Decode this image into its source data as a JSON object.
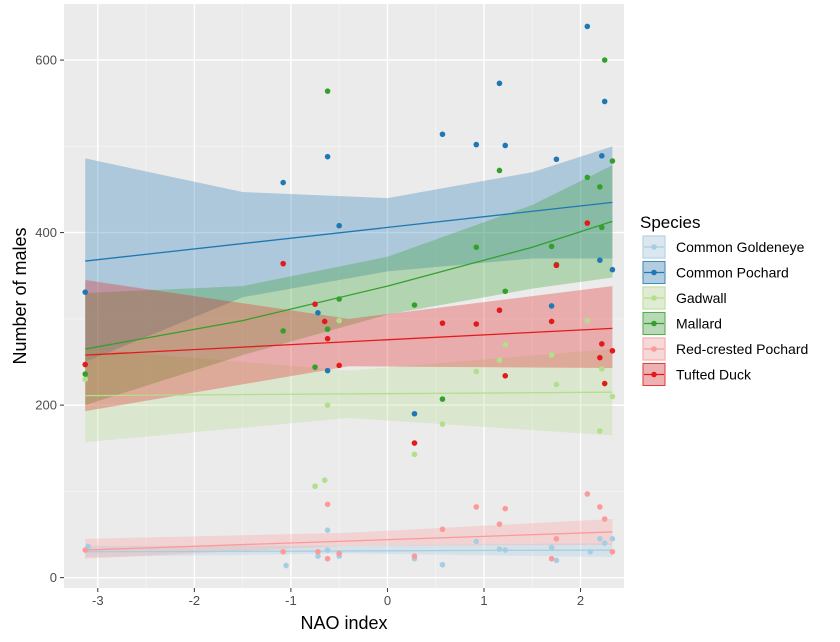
{
  "chart_data": {
    "type": "scatter",
    "xlabel": "NAO index",
    "ylabel": "Number of males",
    "xlim": [
      -3.35,
      2.45
    ],
    "ylim": [
      -12,
      665
    ],
    "x_ticks": [
      -3,
      -2,
      -1,
      0,
      1,
      2
    ],
    "y_ticks": [
      0,
      200,
      400,
      600
    ],
    "grid": true,
    "legend_title": "Species",
    "legend_position": "right",
    "series": [
      {
        "name": "Common Goldeneye",
        "color": "#a6cee3",
        "points": [
          [
            -3.1,
            36
          ],
          [
            -1.05,
            14
          ],
          [
            -0.72,
            25
          ],
          [
            -0.62,
            55
          ],
          [
            -0.62,
            32
          ],
          [
            -0.5,
            25
          ],
          [
            0.28,
            22
          ],
          [
            0.57,
            15
          ],
          [
            0.92,
            42
          ],
          [
            1.16,
            33
          ],
          [
            1.22,
            32
          ],
          [
            1.7,
            35
          ],
          [
            1.75,
            20
          ],
          [
            2.1,
            30
          ],
          [
            2.2,
            45
          ],
          [
            2.25,
            40
          ],
          [
            2.33,
            45
          ]
        ],
        "fit": [
          [
            -3.13,
            30
          ],
          [
            2.33,
            32
          ]
        ],
        "band_lo": [
          [
            -3.13,
            24
          ],
          [
            -0.4,
            28
          ],
          [
            2.33,
            24
          ]
        ],
        "band_hi": [
          [
            -3.13,
            37
          ],
          [
            -0.4,
            37
          ],
          [
            2.33,
            40
          ]
        ]
      },
      {
        "name": "Common Pochard",
        "color": "#1f78b4",
        "points": [
          [
            -3.13,
            331
          ],
          [
            -1.08,
            458
          ],
          [
            -0.72,
            307
          ],
          [
            -0.62,
            488
          ],
          [
            -0.62,
            240
          ],
          [
            -0.5,
            408
          ],
          [
            0.28,
            190
          ],
          [
            0.57,
            514
          ],
          [
            0.92,
            502
          ],
          [
            1.16,
            573
          ],
          [
            1.22,
            501
          ],
          [
            1.7,
            315
          ],
          [
            1.75,
            485
          ],
          [
            2.07,
            639
          ],
          [
            2.2,
            368
          ],
          [
            2.22,
            489
          ],
          [
            2.25,
            552
          ],
          [
            2.33,
            357
          ]
        ],
        "fit": [
          [
            -3.13,
            367
          ],
          [
            2.33,
            435
          ]
        ],
        "band_lo": [
          [
            -3.13,
            250
          ],
          [
            -1.5,
            325
          ],
          [
            0,
            355
          ],
          [
            1.5,
            370
          ],
          [
            2.33,
            370
          ]
        ],
        "band_hi": [
          [
            -3.13,
            486
          ],
          [
            -1.5,
            447
          ],
          [
            0,
            440
          ],
          [
            1.5,
            470
          ],
          [
            2.33,
            500
          ]
        ]
      },
      {
        "name": "Gadwall",
        "color": "#b2df8a",
        "points": [
          [
            -3.13,
            230
          ],
          [
            -0.75,
            106
          ],
          [
            -0.65,
            113
          ],
          [
            -0.62,
            200
          ],
          [
            -0.5,
            298
          ],
          [
            0.28,
            143
          ],
          [
            0.57,
            178
          ],
          [
            0.92,
            239
          ],
          [
            1.16,
            252
          ],
          [
            1.22,
            270
          ],
          [
            1.7,
            258
          ],
          [
            1.75,
            224
          ],
          [
            2.07,
            298
          ],
          [
            2.2,
            170
          ],
          [
            2.22,
            242
          ],
          [
            2.33,
            210
          ]
        ],
        "fit": [
          [
            -3.13,
            211
          ],
          [
            2.33,
            215
          ]
        ],
        "band_lo": [
          [
            -3.13,
            157
          ],
          [
            -0.4,
            185
          ],
          [
            2.33,
            165
          ]
        ],
        "band_hi": [
          [
            -3.13,
            265
          ],
          [
            -0.4,
            240
          ],
          [
            2.33,
            265
          ]
        ]
      },
      {
        "name": "Mallard",
        "color": "#33a02c",
        "points": [
          [
            -3.13,
            236
          ],
          [
            -1.08,
            286
          ],
          [
            -0.75,
            244
          ],
          [
            -0.62,
            564
          ],
          [
            -0.62,
            288
          ],
          [
            -0.5,
            323
          ],
          [
            0.28,
            316
          ],
          [
            0.57,
            207
          ],
          [
            0.92,
            383
          ],
          [
            1.16,
            472
          ],
          [
            1.22,
            332
          ],
          [
            1.7,
            384
          ],
          [
            1.75,
            363
          ],
          [
            2.07,
            464
          ],
          [
            2.2,
            453
          ],
          [
            2.22,
            406
          ],
          [
            2.25,
            600
          ],
          [
            2.33,
            483
          ]
        ],
        "fit": [
          [
            -3.13,
            265
          ],
          [
            -1.5,
            298
          ],
          [
            0,
            338
          ],
          [
            1.5,
            383
          ],
          [
            2.33,
            413
          ]
        ],
        "band_lo": [
          [
            -3.13,
            200
          ],
          [
            -1.5,
            258
          ],
          [
            0,
            305
          ],
          [
            1.5,
            335
          ],
          [
            2.33,
            348
          ]
        ],
        "band_hi": [
          [
            -3.13,
            330
          ],
          [
            -1.5,
            338
          ],
          [
            0,
            372
          ],
          [
            1.5,
            432
          ],
          [
            2.33,
            478
          ]
        ]
      },
      {
        "name": "Red-crested Pochard",
        "color": "#fb9a99",
        "points": [
          [
            -3.13,
            32
          ],
          [
            -1.08,
            30
          ],
          [
            -0.72,
            30
          ],
          [
            -0.62,
            85
          ],
          [
            -0.62,
            22
          ],
          [
            -0.5,
            28
          ],
          [
            0.28,
            25
          ],
          [
            0.57,
            56
          ],
          [
            0.92,
            82
          ],
          [
            1.16,
            62
          ],
          [
            1.22,
            80
          ],
          [
            1.7,
            22
          ],
          [
            1.75,
            45
          ],
          [
            2.07,
            97
          ],
          [
            2.2,
            82
          ],
          [
            2.25,
            68
          ],
          [
            2.33,
            30
          ]
        ],
        "fit": [
          [
            -3.13,
            32
          ],
          [
            2.33,
            53
          ]
        ],
        "band_lo": [
          [
            -3.13,
            22
          ],
          [
            -0.4,
            37
          ],
          [
            2.33,
            38
          ]
        ],
        "band_hi": [
          [
            -3.13,
            45
          ],
          [
            -0.4,
            52
          ],
          [
            2.33,
            68
          ]
        ]
      },
      {
        "name": "Tufted Duck",
        "color": "#e31a1c",
        "points": [
          [
            -3.13,
            247
          ],
          [
            -1.08,
            364
          ],
          [
            -0.75,
            317
          ],
          [
            -0.65,
            297
          ],
          [
            -0.62,
            277
          ],
          [
            -0.5,
            246
          ],
          [
            0.28,
            156
          ],
          [
            0.57,
            295
          ],
          [
            0.92,
            294
          ],
          [
            1.16,
            310
          ],
          [
            1.22,
            234
          ],
          [
            1.7,
            297
          ],
          [
            1.75,
            362
          ],
          [
            2.07,
            411
          ],
          [
            2.2,
            255
          ],
          [
            2.22,
            271
          ],
          [
            2.25,
            225
          ],
          [
            2.33,
            263
          ]
        ],
        "fit": [
          [
            -3.13,
            258
          ],
          [
            2.33,
            289
          ]
        ],
        "band_lo": [
          [
            -3.13,
            193
          ],
          [
            -0.4,
            245
          ],
          [
            2.33,
            243
          ]
        ],
        "band_hi": [
          [
            -3.13,
            345
          ],
          [
            -0.4,
            300
          ],
          [
            2.33,
            338
          ]
        ]
      }
    ]
  }
}
